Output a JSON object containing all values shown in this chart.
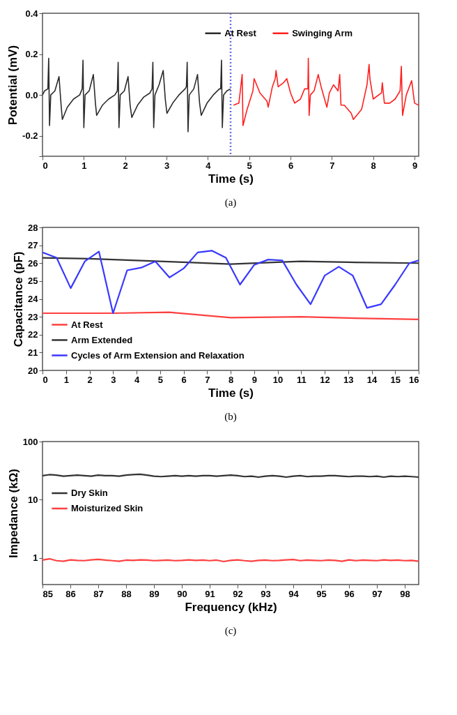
{
  "chart_data": [
    {
      "type": "line",
      "xlabel": "Time (s)",
      "ylabel": "Potential (mV)",
      "annotations": [
        "(a)"
      ],
      "xlim": [
        0,
        9.1
      ],
      "xticks": [
        0,
        1,
        2,
        3,
        4,
        5,
        6,
        7,
        8,
        9
      ],
      "ylim": [
        -0.3,
        0.4
      ],
      "yticks": [
        {
          "value": -0.3,
          "label": null
        },
        -0.2,
        {
          "value": 0,
          "label": "0.0"
        },
        0.2,
        0.4
      ],
      "grid": false,
      "legend": "top",
      "marker": "none",
      "line_style": "solid",
      "ref_lines": [
        {
          "axis": "x",
          "value": 4.55,
          "color": "#6b6be0",
          "line_style": "dotted"
        }
      ],
      "series": [
        {
          "name": "At Rest",
          "color": "#2b2b2b",
          "x": [
            0,
            0.05,
            0.13,
            0.15,
            0.17,
            0.2,
            0.3,
            0.4,
            0.45,
            0.48,
            0.6,
            0.75,
            0.9,
            0.96,
            0.98,
            1.0,
            1.03,
            1.13,
            1.23,
            1.28,
            1.31,
            1.45,
            1.6,
            1.75,
            1.81,
            1.83,
            1.85,
            1.88,
            1.98,
            2.07,
            2.12,
            2.16,
            2.3,
            2.45,
            2.6,
            2.65,
            2.67,
            2.69,
            2.72,
            2.82,
            2.92,
            2.97,
            3.01,
            3.15,
            3.3,
            3.45,
            3.48,
            3.5,
            3.52,
            3.55,
            3.66,
            3.75,
            3.8,
            3.84,
            3.98,
            4.13,
            4.28,
            4.31,
            4.33,
            4.35,
            4.38,
            4.46,
            4.55
          ],
          "values": [
            0.0,
            0.02,
            0.03,
            0.18,
            -0.15,
            0.0,
            0.02,
            0.09,
            -0.05,
            -0.12,
            -0.06,
            -0.02,
            0.0,
            0.03,
            0.17,
            -0.16,
            0.0,
            0.02,
            0.1,
            -0.04,
            -0.1,
            -0.05,
            -0.02,
            0.0,
            0.02,
            0.16,
            -0.16,
            0.0,
            0.02,
            0.09,
            -0.05,
            -0.11,
            -0.05,
            -0.01,
            0.01,
            0.03,
            0.16,
            -0.16,
            0.0,
            0.05,
            0.12,
            -0.02,
            -0.09,
            -0.04,
            0.0,
            0.03,
            0.04,
            0.16,
            -0.18,
            0.0,
            0.03,
            0.1,
            -0.04,
            -0.1,
            -0.04,
            0.0,
            0.03,
            0.03,
            0.17,
            -0.16,
            0.0,
            0.02,
            0.03
          ]
        },
        {
          "name": "Swinging Arm",
          "color": "#ff1f1f",
          "x": [
            4.62,
            4.75,
            4.78,
            4.83,
            4.85,
            4.95,
            5.09,
            5.12,
            5.26,
            5.43,
            5.46,
            5.56,
            5.63,
            5.65,
            5.7,
            5.83,
            5.91,
            6.0,
            6.1,
            6.24,
            6.34,
            6.42,
            6.43,
            6.45,
            6.48,
            6.57,
            6.67,
            6.74,
            6.88,
            6.94,
            7.04,
            7.15,
            7.19,
            7.22,
            7.3,
            7.47,
            7.52,
            7.72,
            7.85,
            7.9,
            7.92,
            8.0,
            8.2,
            8.22,
            8.27,
            8.4,
            8.53,
            8.65,
            8.68,
            8.71,
            8.8,
            8.93,
            9.0,
            9.1
          ],
          "values": [
            -0.05,
            -0.04,
            0.01,
            0.1,
            -0.15,
            -0.07,
            0.02,
            0.08,
            0.01,
            -0.03,
            -0.06,
            0.04,
            0.08,
            0.12,
            0.04,
            0.06,
            0.08,
            0.01,
            -0.04,
            -0.02,
            0.03,
            0.03,
            0.18,
            -0.1,
            0.0,
            0.02,
            0.1,
            0.04,
            -0.06,
            0.01,
            0.05,
            0.02,
            0.1,
            -0.05,
            -0.05,
            -0.09,
            -0.12,
            -0.07,
            0.05,
            0.15,
            0.08,
            -0.02,
            0.01,
            0.06,
            -0.04,
            -0.04,
            -0.02,
            0.02,
            0.14,
            -0.1,
            0.0,
            0.07,
            -0.04,
            -0.05
          ]
        }
      ]
    },
    {
      "type": "line",
      "xlabel": "Time (s)",
      "ylabel": "Capacitance (pF)",
      "annotations": [
        "(b)"
      ],
      "xlim": [
        0,
        16
      ],
      "xticks": [
        0,
        1,
        2,
        3,
        4,
        5,
        6,
        7,
        8,
        9,
        10,
        11,
        12,
        13,
        14,
        15,
        16
      ],
      "ylim": [
        20,
        28
      ],
      "yticks": [
        20,
        21,
        22,
        23,
        24,
        25,
        26,
        27,
        28
      ],
      "grid": false,
      "legend": "bottom left",
      "marker": "none",
      "line_style": "solid",
      "series": [
        {
          "name": "At Rest",
          "color": "#ff4040",
          "x": [
            0,
            3,
            5.4,
            8,
            11,
            14,
            16
          ],
          "values": [
            23.2,
            23.2,
            23.25,
            22.95,
            23.0,
            22.9,
            22.85
          ]
        },
        {
          "name": "Arm Extended",
          "color": "#333333",
          "x": [
            0,
            2,
            4,
            6,
            8,
            10,
            11,
            13,
            16
          ],
          "values": [
            26.3,
            26.25,
            26.15,
            26.05,
            25.95,
            26.05,
            26.1,
            26.05,
            26.0
          ]
        },
        {
          "name": "Cycles of Arm Extension and Relaxation",
          "color": "#3838ff",
          "x": [
            0,
            0.6,
            1.2,
            1.8,
            2.4,
            3.0,
            3.6,
            4.2,
            4.8,
            5.4,
            6.0,
            6.6,
            7.2,
            7.8,
            8.4,
            9.0,
            9.6,
            10.2,
            10.8,
            11.4,
            12.0,
            12.6,
            13.2,
            13.8,
            14.4,
            15.0,
            15.6,
            16.0
          ],
          "values": [
            26.6,
            26.3,
            24.6,
            26.1,
            26.65,
            23.2,
            25.6,
            25.75,
            26.1,
            25.2,
            25.7,
            26.6,
            26.7,
            26.3,
            24.8,
            25.9,
            26.2,
            26.15,
            24.8,
            23.7,
            25.3,
            25.8,
            25.3,
            23.5,
            23.7,
            24.8,
            26.0,
            26.15
          ]
        }
      ]
    },
    {
      "type": "line",
      "xlabel": "Frequency (kHz)",
      "ylabel": "Impedance (kΩ)",
      "annotations": [
        "(c)"
      ],
      "log": true,
      "xlim": [
        85,
        98.5
      ],
      "xticks": [
        85,
        86,
        87,
        88,
        89,
        90,
        91,
        92,
        93,
        94,
        95,
        96,
        97,
        98
      ],
      "ylim": [
        0.35,
        100
      ],
      "yticks": [
        1,
        10,
        100
      ],
      "grid": false,
      "legend": "left",
      "marker": "none",
      "line_style": "solid",
      "x": [
        85,
        85.25,
        85.5,
        85.75,
        86,
        86.25,
        86.5,
        86.75,
        87,
        87.25,
        87.5,
        87.75,
        88,
        88.25,
        88.5,
        88.75,
        89,
        89.25,
        89.5,
        89.75,
        90,
        90.25,
        90.5,
        90.75,
        91,
        91.25,
        91.5,
        91.75,
        92,
        92.25,
        92.5,
        92.75,
        93,
        93.25,
        93.5,
        93.75,
        94,
        94.25,
        94.5,
        94.75,
        95,
        95.25,
        95.5,
        95.75,
        96,
        96.25,
        96.5,
        96.75,
        97,
        97.25,
        97.5,
        97.75,
        98,
        98.25,
        98.5
      ],
      "series": [
        {
          "name": "Dry Skin",
          "color": "#333333",
          "values": [
            26,
            27,
            26.5,
            25.5,
            26,
            26.5,
            26,
            25.5,
            26.5,
            26,
            26,
            25.5,
            26.5,
            27,
            27.5,
            26.5,
            25.5,
            25,
            25.5,
            26,
            25.5,
            26,
            25.5,
            26,
            26,
            25.5,
            26,
            26.5,
            26,
            25,
            25.5,
            24.5,
            25.5,
            26,
            25.5,
            24.5,
            25.5,
            26,
            25,
            25.5,
            25.5,
            26,
            26,
            25.5,
            25,
            25.5,
            25.5,
            25,
            25.5,
            24.5,
            25.5,
            25,
            25.5,
            25,
            24.5
          ]
        },
        {
          "name": "Moisturized Skin",
          "color": "#ff4040",
          "values": [
            0.92,
            0.97,
            0.9,
            0.88,
            0.93,
            0.91,
            0.9,
            0.93,
            0.95,
            0.92,
            0.9,
            0.88,
            0.92,
            0.91,
            0.93,
            0.92,
            0.9,
            0.91,
            0.92,
            0.9,
            0.91,
            0.93,
            0.91,
            0.92,
            0.9,
            0.92,
            0.87,
            0.91,
            0.93,
            0.9,
            0.88,
            0.91,
            0.92,
            0.9,
            0.91,
            0.93,
            0.94,
            0.9,
            0.92,
            0.91,
            0.9,
            0.92,
            0.91,
            0.88,
            0.93,
            0.9,
            0.92,
            0.91,
            0.9,
            0.93,
            0.91,
            0.92,
            0.9,
            0.91,
            0.88
          ]
        }
      ]
    }
  ]
}
